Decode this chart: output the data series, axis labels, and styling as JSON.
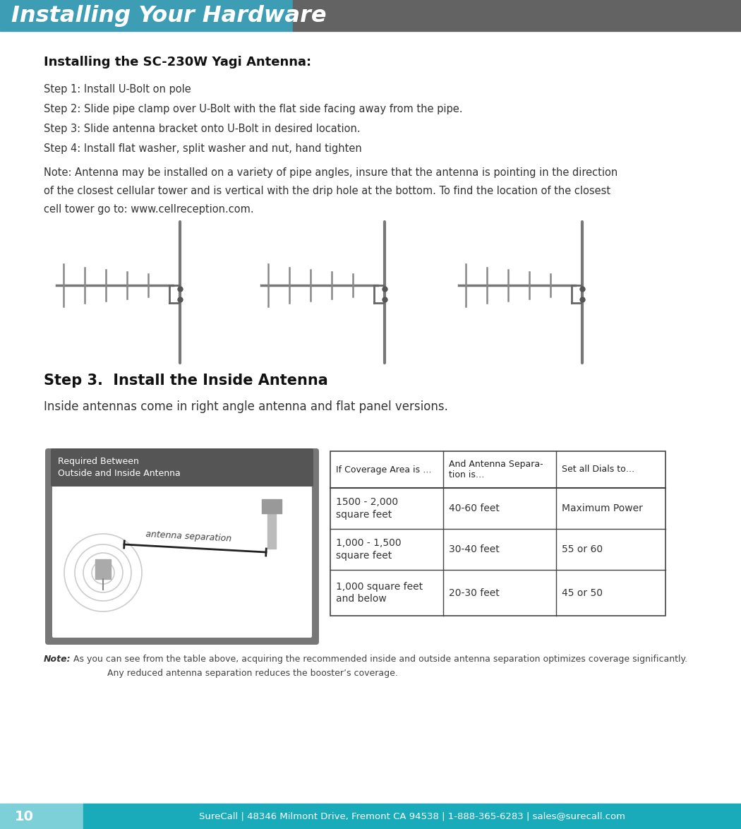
{
  "header_text": "Installing Your Hardware",
  "header_bg_color": "#3d9db5",
  "header_dark_bg": "#636363",
  "header_text_color": "#ffffff",
  "page_bg": "#ffffff",
  "section1_title": "Installing the SC-230W Yagi Antenna:",
  "steps": [
    "Step 1: Install U-Bolt on pole",
    "Step 2: Slide pipe clamp over U-Bolt with the flat side facing away from the pipe.",
    "Step 3: Slide antenna bracket onto U-Bolt in desired location.",
    "Step 4: Install flat washer, split washer and nut, hand tighten"
  ],
  "note_para": "Note: Antenna may be installed on a variety of pipe angles, insure that the antenna is pointing in the direction of the closest cellular tower and is vertical with the drip hole at the bottom. To find the location of the closest cell tower go to: www.cellreception.com.",
  "section2_title": "Step 3.  Install the Inside Antenna",
  "section2_subtitle": "Inside antennas come in right angle antenna and flat panel versions.",
  "diagram_label": "Required Between\nOutside and Inside Antenna",
  "diagram_label_bg": "#555555",
  "diagram_label_text": "#ffffff",
  "diagram_box_bg": "#666666",
  "diagram_inner_bg": "#ffffff",
  "antenna_sep_text": "antenna separation",
  "table_headers": [
    "If Coverage Area is …",
    "And Antenna Separa-\ntion is…",
    "Set all Dials to…"
  ],
  "table_rows": [
    [
      "1500 - 2,000\nsquare feet",
      "40-60 feet",
      "Maximum Power"
    ],
    [
      "1,000 - 1,500\nsquare feet",
      "30-40 feet",
      "55 or 60"
    ],
    [
      "1,000 square feet\nand below",
      "20-30 feet",
      "45 or 50"
    ]
  ],
  "note_bold": "Note:",
  "note_text": " As you can see from the table above, acquiring the recommended inside and outside antenna separation optimizes coverage significantly.",
  "note_text2": "Any reduced antenna separation reduces the booster’s coverage.",
  "footer_page": "10",
  "footer_center": "SureCall | 48346 Milmont Drive, Fremont CA 94538 | 1-888-365-6283 | sales@surecall.com",
  "footer_bg": "#1aabbb",
  "footer_page_bg": "#7dd0d8",
  "footer_text_color": "#ffffff"
}
